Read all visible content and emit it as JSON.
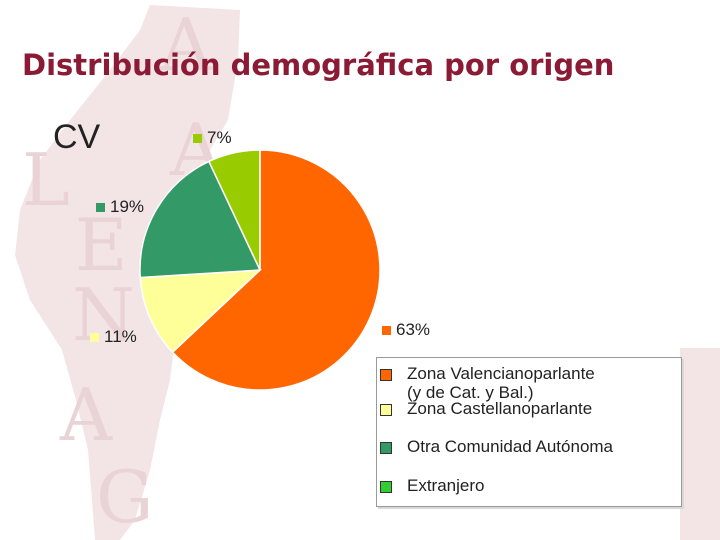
{
  "title": "Distribución demográfica por origen",
  "region_label": "CV",
  "colors": {
    "title": "#8b1a35",
    "background_map": "#f3e4e6",
    "background_letters": "#ead3d6"
  },
  "background_letters": [
    "A",
    "A",
    "L",
    "E",
    "N",
    "A",
    "G"
  ],
  "chart_data": {
    "type": "pie",
    "title": "",
    "series": [
      {
        "name": "Zona Valencianoparlante\n(y de Cat. y Bal.)",
        "value": 63,
        "label": "63%",
        "color": "#ff6600"
      },
      {
        "name": "Zona Castellanoparlante",
        "value": 11,
        "label": "11%",
        "color": "#ffff99"
      },
      {
        "name": "Otra Comunidad Autónoma",
        "value": 19,
        "label": "19%",
        "color": "#339966"
      },
      {
        "name": "Extranjero",
        "value": 7,
        "label": "7%",
        "color": "#99cc00"
      }
    ],
    "legend": {
      "placement": "bottom-right",
      "entries": [
        {
          "label": "Zona Valencianoparlante\n(y de Cat. y Bal.)",
          "color": "#ff6600"
        },
        {
          "label": "Zona Castellanoparlante",
          "color": "#ffff99"
        },
        {
          "label": "Otra Comunidad Autónoma",
          "color": "#339966"
        },
        {
          "label": "Extranjero",
          "color": "#33cc33"
        }
      ]
    }
  }
}
